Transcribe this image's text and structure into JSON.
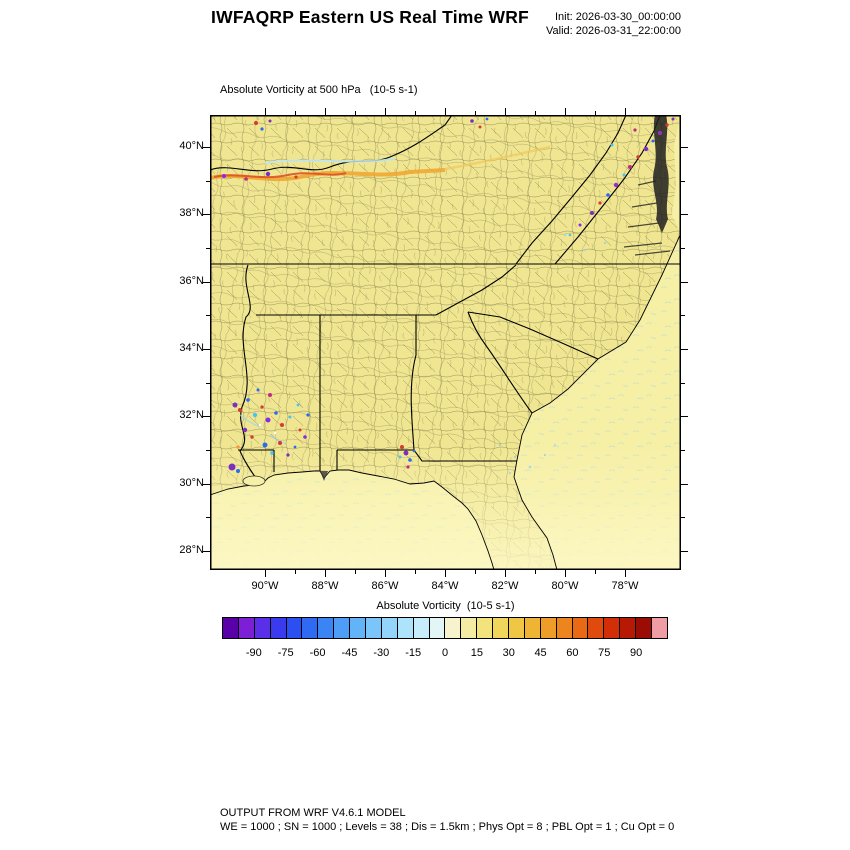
{
  "header": {
    "title": "IWFAQRP Eastern US Real Time WRF",
    "init_line": "Init: 2026-03-30_00:00:00",
    "valid_line": "Valid: 2026-03-31_22:00:00"
  },
  "plot": {
    "subtitle": "Absolute Vorticity at 500 hPa   (10-5 s-1)",
    "lat_labels": [
      "40°N",
      "38°N",
      "36°N",
      "34°N",
      "32°N",
      "30°N",
      "28°N"
    ],
    "lon_labels": [
      "90°W",
      "88°W",
      "86°W",
      "84°W",
      "82°W",
      "80°W",
      "78°W"
    ]
  },
  "colorbar": {
    "title": "Absolute Vorticity  (10-5 s-1)",
    "range": [
      -105,
      105
    ],
    "tick_values": [
      -90,
      -75,
      -60,
      -45,
      -30,
      -15,
      0,
      15,
      30,
      45,
      60,
      75,
      90
    ],
    "tick_labels": [
      "-90",
      "-75",
      "-60",
      "-45",
      "-30",
      "-15",
      "0",
      "15",
      "30",
      "45",
      "60",
      "75",
      "90"
    ],
    "colors": [
      "#5A00A8",
      "#7D1FD6",
      "#5B2FE8",
      "#3A3AEE",
      "#2B4FF0",
      "#2F6AF2",
      "#3B84F4",
      "#4E9DF6",
      "#63B3F8",
      "#7AC5F9",
      "#93D5FA",
      "#ADE3FB",
      "#C7EDFC",
      "#E2F6F5",
      "#F7F3CC",
      "#F4ECA2",
      "#F2E37C",
      "#F0D65A",
      "#EFC744",
      "#EFB434",
      "#EE9E28",
      "#EC851D",
      "#E96914",
      "#E14A0D",
      "#D22E08",
      "#B71905",
      "#9A0C04",
      "#F09CA5"
    ]
  },
  "footer": {
    "line1": "OUTPUT FROM WRF V4.6.1 MODEL",
    "line2": "WE = 1000 ; SN = 1000 ; Levels = 38 ; Dis = 1.5km ; Phys Opt = 8 ; PBL Opt = 1 ; Cu Opt = 0"
  },
  "chart_data": {
    "type": "heatmap",
    "title": "Absolute Vorticity at 500 hPa (10-5 s-1)",
    "x_axis": {
      "label": "longitude",
      "tick_labels": [
        "90°W",
        "88°W",
        "86°W",
        "84°W",
        "82°W",
        "80°W",
        "78°W"
      ],
      "approx_range_deg_west": [
        91.8,
        76.1
      ]
    },
    "y_axis": {
      "label": "latitude",
      "tick_labels": [
        "40°N",
        "38°N",
        "36°N",
        "34°N",
        "32°N",
        "30°N",
        "28°N"
      ],
      "approx_range_deg_north": [
        27.4,
        41.0
      ]
    },
    "colorbar": {
      "label": "Absolute Vorticity (10-5 s-1)",
      "units": "10-5 s-1",
      "tick_values": [
        -90,
        -75,
        -60,
        -45,
        -30,
        -15,
        0,
        15,
        30,
        45,
        60,
        75,
        90
      ],
      "range": [
        -105,
        105
      ],
      "grid": false,
      "legend_position": "bottom"
    },
    "background_field": "nearly uniform value of about 10-15 (pale yellow) across the whole domain over both land and ocean; slightly lighter (about 5-10) band across the Gulf coast and Gulf of Mexico in the south",
    "features": [
      {
        "region": "northern edge, ~40-40.8N from ~91.5W to ~84W",
        "value_range": "30 to 75 with embedded maxima >90",
        "description": "elongated orange/red vorticity band with small purple maxima near the western end"
      },
      {
        "region": "western Virginia / Appalachians, ~37.5-40.5N, 79-76.5W",
        "value_range": "+/-75 to +/-105",
        "description": "scattered purple, red and blue speckle maxima along a NE-SW diagonal"
      },
      {
        "region": "west-central Mississippi / Alabama, ~31-33N, 91-88W",
        "value_range": "+/-60 to +/-105",
        "description": "dense cluster of small cyclonic/anticyclonic vorticity couplets (blue, red, purple, cyan speckles)"
      },
      {
        "region": "southern Alabama, ~30.5-31.5N, ~86.5W",
        "value_range": "+/-60 to +/-90",
        "description": "isolated couplet of vorticity speckles"
      },
      {
        "region": "southern Georgia and offshore Atlantic",
        "value_range": "0 to -15",
        "description": "sparse faint light-blue speckles"
      }
    ],
    "map_colors": {
      "land_background": "#F0E691",
      "ocean_background": "#F6EFA6",
      "county_lines": "#8E8752",
      "state_lines": "#000000"
    }
  }
}
